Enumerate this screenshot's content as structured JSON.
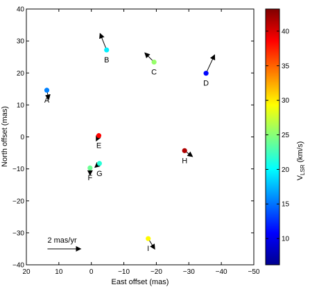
{
  "chart_data": {
    "type": "scatter",
    "xlabel": "East offset (mas)",
    "ylabel": "North offset (mas)",
    "xlim": [
      20,
      -50
    ],
    "ylim": [
      -40,
      40
    ],
    "x_reversed": true,
    "xticks": [
      20,
      10,
      0,
      -10,
      -20,
      -30,
      -40,
      -50
    ],
    "yticks": [
      -40,
      -30,
      -20,
      -10,
      0,
      10,
      20,
      30,
      40
    ],
    "grid": false,
    "points": [
      {
        "label": "A",
        "x": 13.7,
        "y": 14.6,
        "vlsr": 15.5,
        "mu_x": -0.3,
        "mu_y": -1.4
      },
      {
        "label": "B",
        "x": -4.7,
        "y": 27.2,
        "vlsr": 19.5,
        "mu_x": 1.0,
        "mu_y": 2.5
      },
      {
        "label": "C",
        "x": -19.3,
        "y": 23.4,
        "vlsr": 25.5,
        "mu_x": 1.4,
        "mu_y": 1.4
      },
      {
        "label": "D",
        "x": -35.3,
        "y": 19.9,
        "vlsr": 11.0,
        "mu_x": -1.3,
        "mu_y": 2.8
      },
      {
        "label": "E",
        "x": -2.3,
        "y": 0.4,
        "vlsr": 38.5,
        "mu_x": 0.4,
        "mu_y": -0.8
      },
      {
        "label": "F",
        "x": 0.4,
        "y": -9.7,
        "vlsr": 24.0,
        "mu_x": 0.0,
        "mu_y": -1.1
      },
      {
        "label": "G",
        "x": -2.5,
        "y": -8.3,
        "vlsr": 21.5,
        "mu_x": 0.7,
        "mu_y": -0.6
      },
      {
        "label": "H",
        "x": -28.7,
        "y": -4.3,
        "vlsr": 41.5,
        "mu_x": -1.2,
        "mu_y": -0.9
      },
      {
        "label": "I",
        "x": -17.5,
        "y": -31.8,
        "vlsr": 29.5,
        "mu_x": -1.0,
        "mu_y": -1.6
      }
    ],
    "scale_arrow": {
      "label": "2 mas/yr",
      "x": 13.5,
      "y": -35,
      "length_mas_per_yr": 2
    },
    "colorbar": {
      "label_main": "V",
      "label_sub": "LSR",
      "label_unit": " (km/s)",
      "min": 6.2,
      "max": 43.2,
      "ticks": [
        10,
        15,
        20,
        25,
        30,
        35,
        40
      ],
      "colormap": "jet"
    }
  }
}
